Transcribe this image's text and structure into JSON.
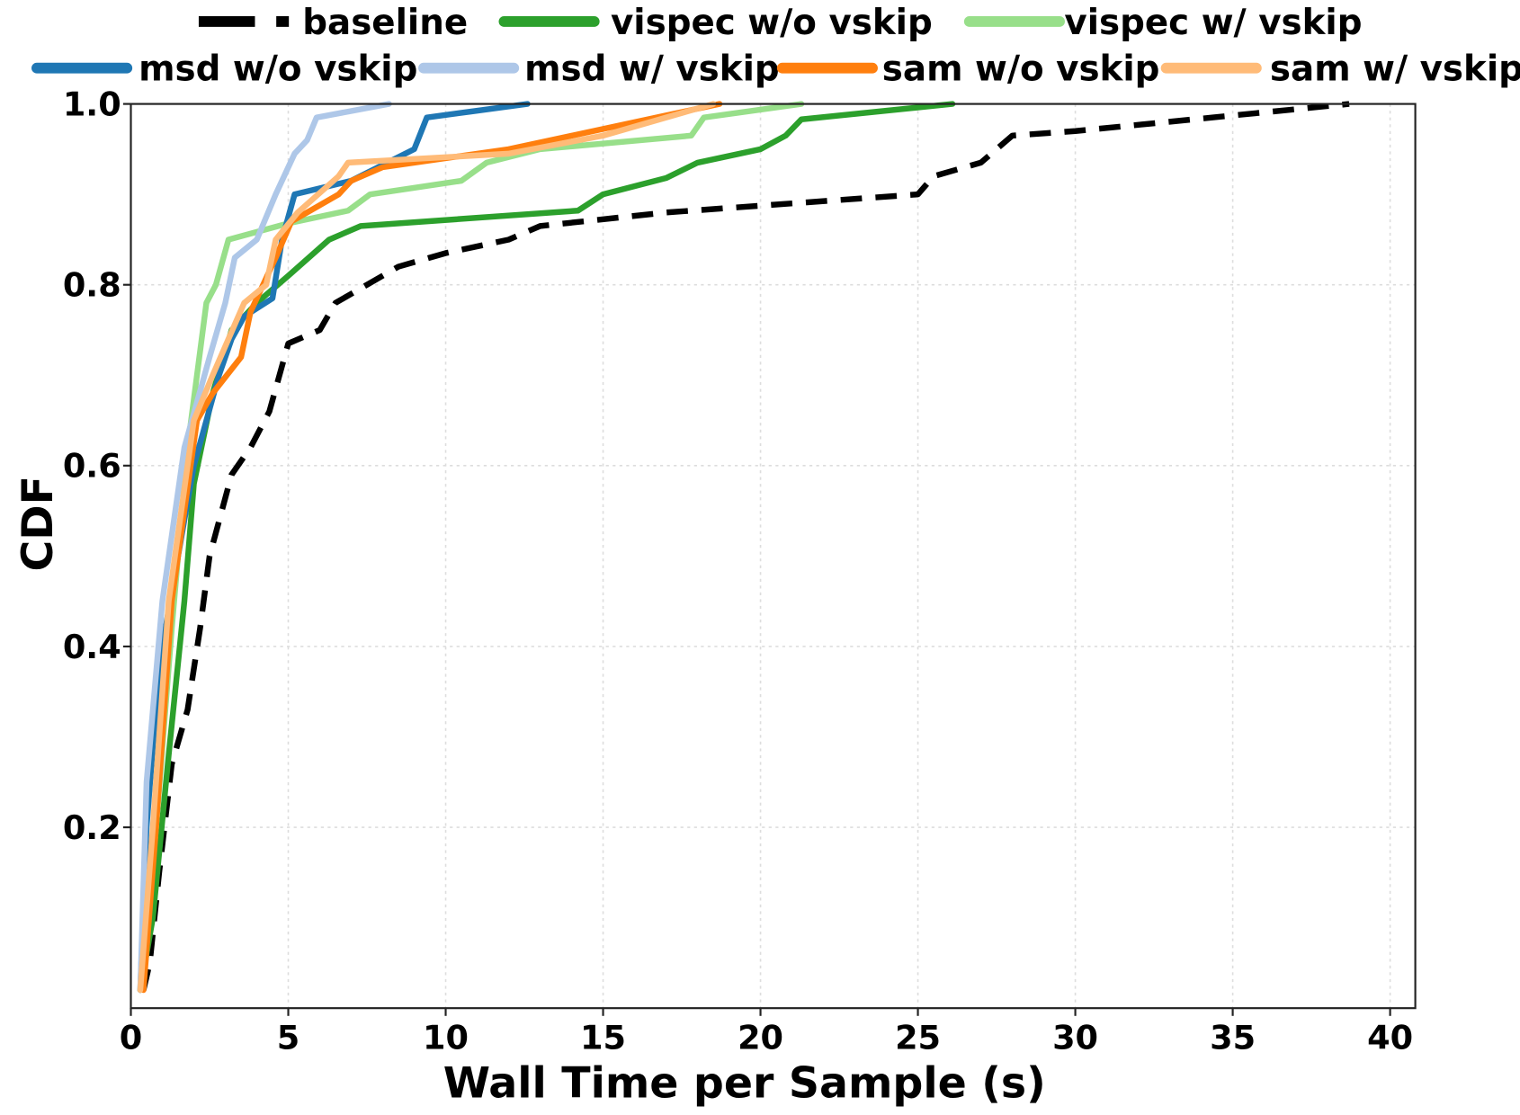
{
  "chart_data": {
    "type": "line",
    "title": "",
    "xlabel": "Wall Time per Sample (s)",
    "ylabel": "CDF",
    "xlim": [
      0,
      40.8
    ],
    "ylim": [
      0,
      1.0
    ],
    "xticks": [
      "0",
      "5",
      "10",
      "15",
      "20",
      "25",
      "30",
      "35",
      "40"
    ],
    "yticks": [
      "0.2",
      "0.4",
      "0.6",
      "0.8",
      "1.0"
    ],
    "grid": true,
    "legend_position": "top (above plot), two rows",
    "series": [
      {
        "name": "baseline",
        "color": "#000000",
        "dashed": true,
        "x": [
          0.4,
          0.6,
          0.9,
          1.3,
          1.8,
          2.2,
          2.5,
          3.2,
          3.8,
          4.4,
          5,
          6,
          6.5,
          7.5,
          8.5,
          10,
          12,
          13,
          17,
          25,
          25.5,
          27,
          28,
          30,
          38.7
        ],
        "y": [
          0.02,
          0.05,
          0.15,
          0.27,
          0.33,
          0.42,
          0.5,
          0.59,
          0.62,
          0.66,
          0.735,
          0.75,
          0.78,
          0.8,
          0.82,
          0.835,
          0.85,
          0.865,
          0.88,
          0.9,
          0.92,
          0.935,
          0.965,
          0.97,
          1.0
        ]
      },
      {
        "name": "vispec w/o vskip",
        "color": "#2ca02c",
        "dashed": false,
        "x": [
          0.3,
          0.7,
          1.2,
          1.7,
          2.0,
          2.6,
          3.2,
          4,
          5,
          6.3,
          7.3,
          14.2,
          15,
          17,
          18,
          20,
          20.8,
          21.3,
          26.1
        ],
        "y": [
          0.02,
          0.1,
          0.28,
          0.45,
          0.58,
          0.68,
          0.75,
          0.78,
          0.81,
          0.85,
          0.865,
          0.882,
          0.9,
          0.918,
          0.935,
          0.95,
          0.965,
          0.983,
          1.0
        ]
      },
      {
        "name": "vispec w/ vskip",
        "color": "#98df8a",
        "dashed": false,
        "x": [
          0.3,
          0.8,
          1.3,
          1.8,
          2.4,
          2.7,
          3.1,
          5,
          6.9,
          7.6,
          10.5,
          11.3,
          13,
          17.8,
          18.2,
          21.3
        ],
        "y": [
          0.02,
          0.2,
          0.42,
          0.62,
          0.78,
          0.8,
          0.85,
          0.868,
          0.882,
          0.9,
          0.915,
          0.935,
          0.95,
          0.965,
          0.985,
          1.0
        ]
      },
      {
        "name": "msd w/o vskip",
        "color": "#1f77b4",
        "dashed": false,
        "x": [
          0.3,
          0.5,
          0.9,
          1.5,
          2,
          2.8,
          3.2,
          3.6,
          4.5,
          4.8,
          5.2,
          7,
          9,
          9.4,
          12.6
        ],
        "y": [
          0.02,
          0.2,
          0.38,
          0.5,
          0.6,
          0.7,
          0.74,
          0.765,
          0.785,
          0.85,
          0.9,
          0.915,
          0.95,
          0.985,
          1.0
        ]
      },
      {
        "name": "msd w/ vskip",
        "color": "#aec7e8",
        "dashed": false,
        "x": [
          0.3,
          0.5,
          1,
          1.7,
          2.5,
          3,
          3.3,
          4,
          4.6,
          5.2,
          5.6,
          5.9,
          8.2
        ],
        "y": [
          0.02,
          0.25,
          0.45,
          0.62,
          0.72,
          0.78,
          0.83,
          0.85,
          0.9,
          0.945,
          0.96,
          0.985,
          1.0
        ]
      },
      {
        "name": "sam w/o vskip",
        "color": "#ff7f0e",
        "dashed": false,
        "x": [
          0.4,
          0.8,
          1.3,
          2.1,
          2.6,
          3.5,
          3.8,
          4.6,
          5.1,
          6.6,
          7,
          8,
          12,
          18.7
        ],
        "y": [
          0.02,
          0.2,
          0.45,
          0.65,
          0.68,
          0.72,
          0.77,
          0.83,
          0.87,
          0.9,
          0.915,
          0.93,
          0.95,
          1.0
        ]
      },
      {
        "name": "sam w/ vskip",
        "color": "#ffbb78",
        "dashed": false,
        "x": [
          0.3,
          0.7,
          1.2,
          2,
          2.6,
          3.6,
          4.3,
          4.6,
          5.3,
          6.6,
          6.9,
          12,
          15,
          18.5
        ],
        "y": [
          0.02,
          0.2,
          0.45,
          0.65,
          0.7,
          0.78,
          0.8,
          0.85,
          0.88,
          0.92,
          0.935,
          0.945,
          0.965,
          1.0
        ]
      }
    ]
  }
}
